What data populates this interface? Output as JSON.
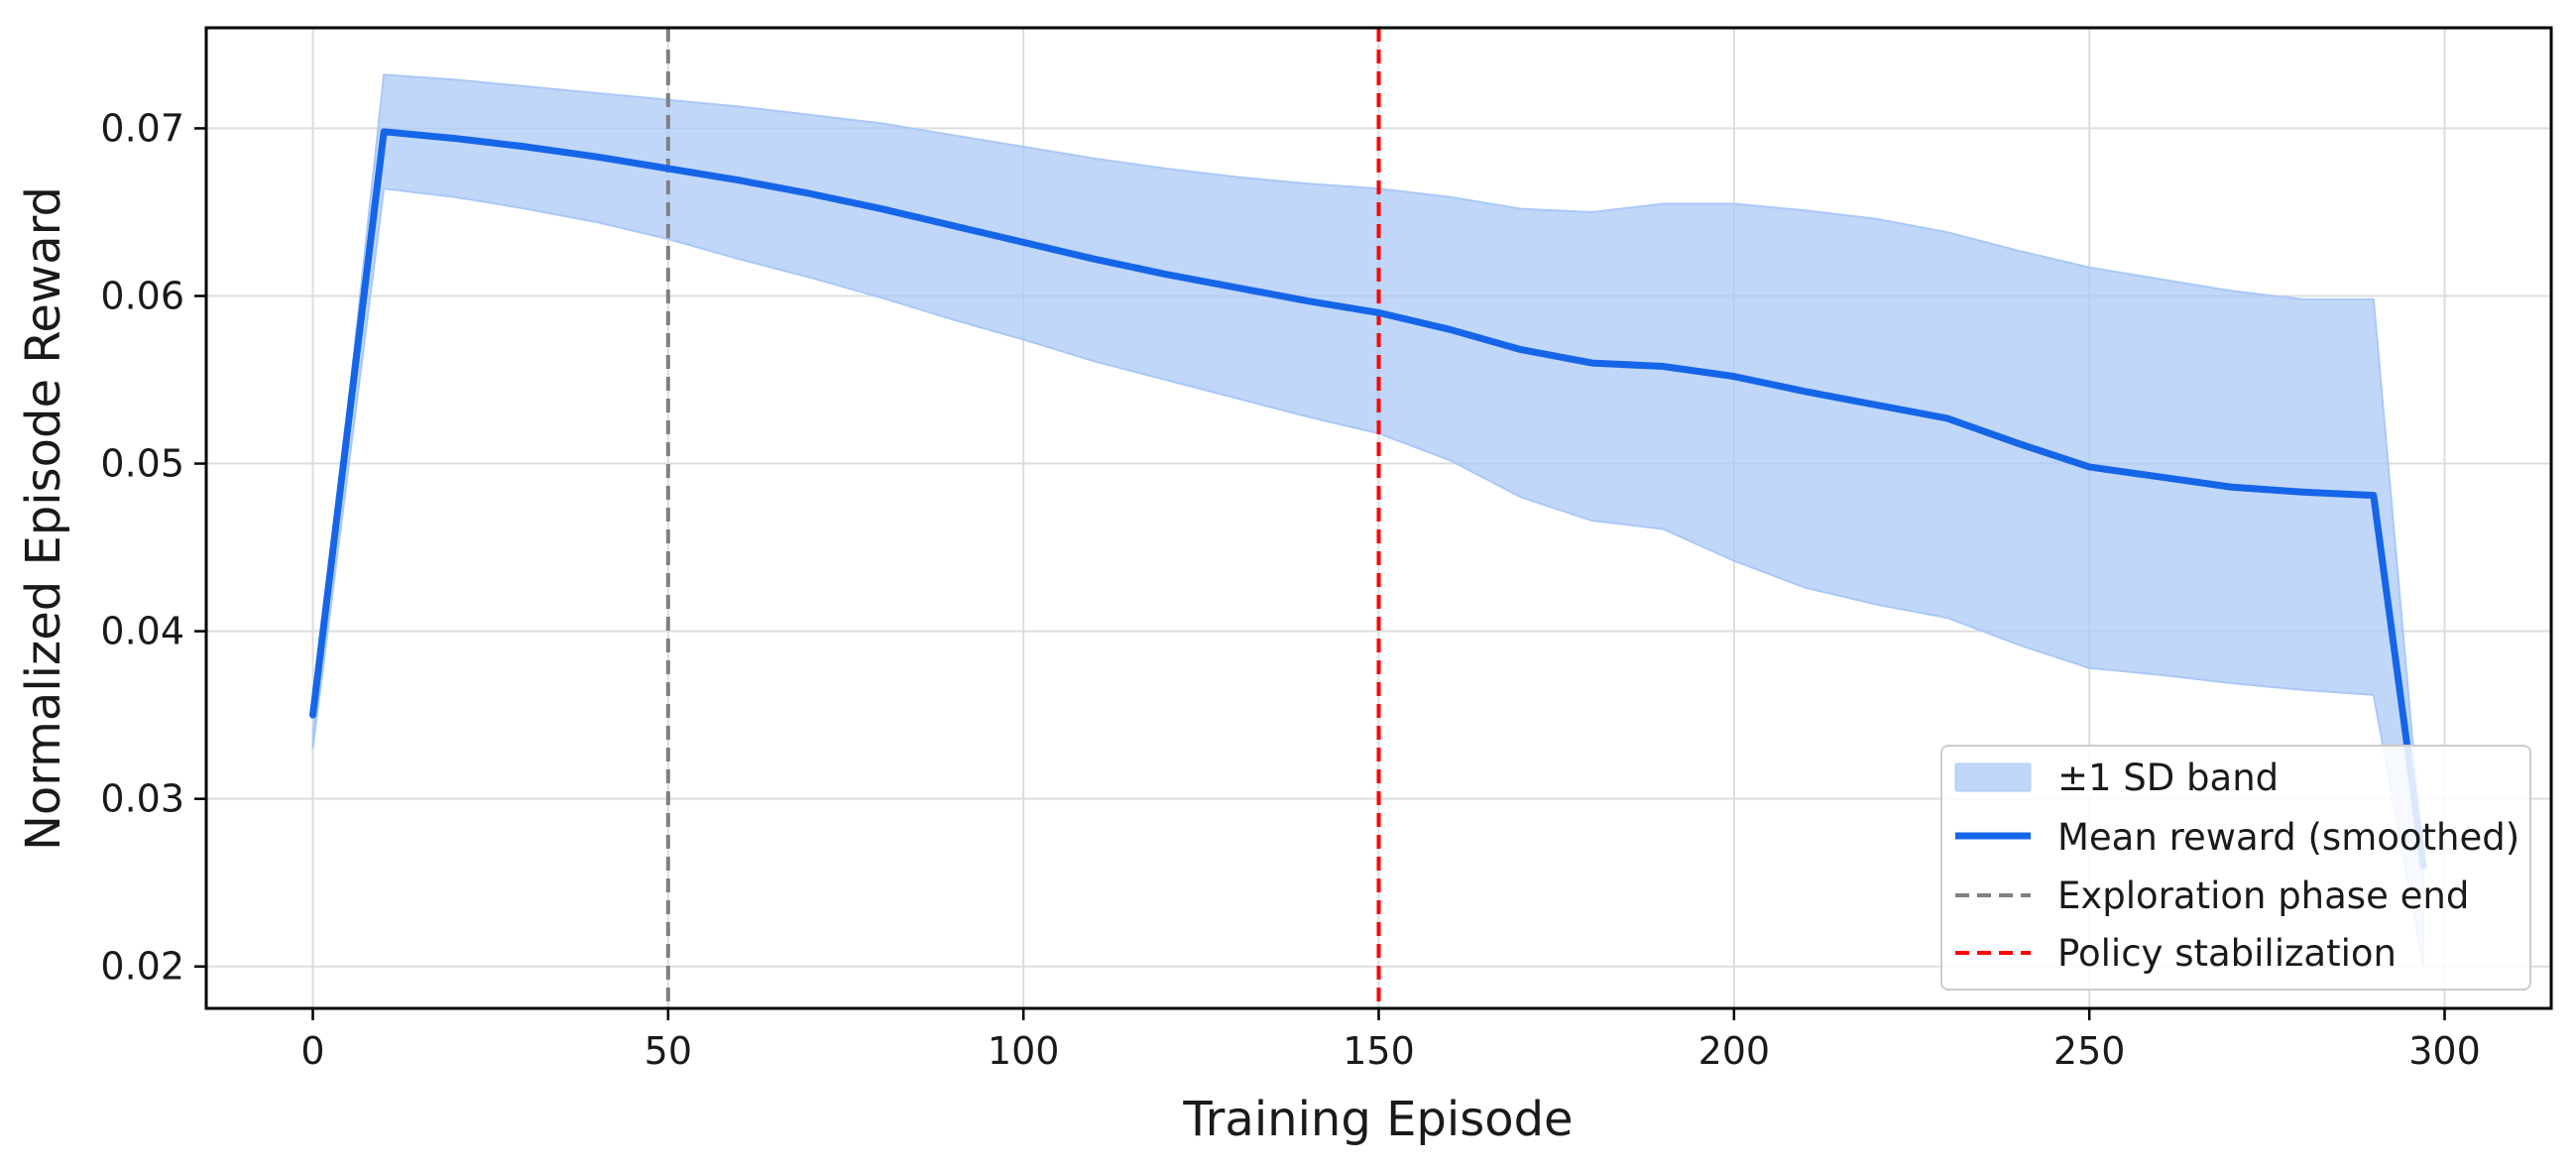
{
  "chart_data": {
    "type": "line",
    "title": "",
    "xlabel": "Training Episode",
    "ylabel": "Normalized Episode Reward",
    "xlim": [
      -15,
      315
    ],
    "ylim": [
      0.0175,
      0.076
    ],
    "xticks": [
      0,
      50,
      100,
      150,
      200,
      250,
      300
    ],
    "yticks": [
      0.02,
      0.03,
      0.04,
      0.05,
      0.06,
      0.07
    ],
    "ytick_labels": [
      "0.02",
      "0.03",
      "0.04",
      "0.05",
      "0.06",
      "0.07"
    ],
    "grid": true,
    "legend_position": "lower-right",
    "series": [
      {
        "name": "Mean reward (smoothed)",
        "color": "#1565e8",
        "x": [
          0,
          10,
          20,
          30,
          40,
          50,
          60,
          70,
          80,
          90,
          100,
          110,
          120,
          130,
          140,
          150,
          160,
          170,
          180,
          190,
          200,
          210,
          220,
          230,
          240,
          250,
          260,
          270,
          280,
          290,
          297
        ],
        "y": [
          0.035,
          0.0698,
          0.0694,
          0.0689,
          0.0683,
          0.0676,
          0.0669,
          0.0661,
          0.0652,
          0.0642,
          0.0632,
          0.0622,
          0.0613,
          0.0605,
          0.0597,
          0.059,
          0.058,
          0.0568,
          0.056,
          0.0558,
          0.0552,
          0.0543,
          0.0535,
          0.0527,
          0.0512,
          0.0498,
          0.0492,
          0.0486,
          0.0483,
          0.0481,
          0.026
        ]
      },
      {
        "name": "±1 SD band",
        "type": "band",
        "color": "#a9c8f7",
        "x": [
          0,
          10,
          20,
          30,
          40,
          50,
          60,
          70,
          80,
          90,
          100,
          110,
          120,
          130,
          140,
          150,
          160,
          170,
          180,
          190,
          200,
          210,
          220,
          230,
          240,
          250,
          260,
          270,
          280,
          290,
          297
        ],
        "upper": [
          0.0338,
          0.0732,
          0.0729,
          0.0725,
          0.0721,
          0.0717,
          0.0713,
          0.0708,
          0.0703,
          0.0696,
          0.0689,
          0.0682,
          0.0676,
          0.0671,
          0.0667,
          0.0664,
          0.0659,
          0.0652,
          0.065,
          0.0655,
          0.0655,
          0.0651,
          0.0646,
          0.0638,
          0.0627,
          0.0617,
          0.061,
          0.0603,
          0.0598,
          0.0598,
          0.0262
        ],
        "lower": [
          0.033,
          0.0664,
          0.0659,
          0.0652,
          0.0644,
          0.0634,
          0.0622,
          0.0611,
          0.0599,
          0.0586,
          0.0574,
          0.0561,
          0.055,
          0.0539,
          0.0528,
          0.0518,
          0.0502,
          0.048,
          0.0466,
          0.0461,
          0.0442,
          0.0426,
          0.0416,
          0.0408,
          0.0392,
          0.0378,
          0.0374,
          0.0369,
          0.0365,
          0.0362,
          0.02
        ]
      }
    ],
    "vlines": [
      {
        "x": 50,
        "name": "Exploration phase end",
        "color": "#808080"
      },
      {
        "x": 150,
        "name": "Policy stabilization",
        "color": "#ff0000"
      }
    ],
    "legend": [
      "±1 SD band",
      "Mean reward (smoothed)",
      "Exploration phase end",
      "Policy stabilization"
    ]
  }
}
